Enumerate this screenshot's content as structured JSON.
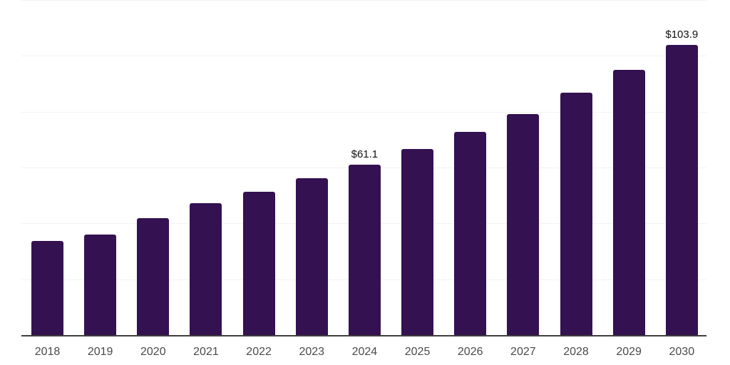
{
  "chart_data": {
    "type": "bar",
    "title": "",
    "xlabel": "",
    "ylabel": "",
    "categories": [
      "2018",
      "2019",
      "2020",
      "2021",
      "2022",
      "2023",
      "2024",
      "2025",
      "2026",
      "2027",
      "2028",
      "2029",
      "2030"
    ],
    "values": [
      33.7,
      36.0,
      41.9,
      47.2,
      51.4,
      56.2,
      61.1,
      66.6,
      72.8,
      79.2,
      86.8,
      95.0,
      103.9
    ],
    "data_labels": {
      "2024": "$61.1",
      "2030": "$103.9"
    },
    "ylim": [
      0,
      120
    ],
    "gridline_values": [
      20,
      40,
      60,
      80,
      100,
      120
    ],
    "grid": true,
    "legend": "none"
  },
  "colors": {
    "background": "#ffffff",
    "bar": "#341151",
    "gridline": "#f2f2f2",
    "axis_line": "#3f3f3f",
    "tick_label": "#4a4a4a",
    "value_label": "#111111"
  }
}
